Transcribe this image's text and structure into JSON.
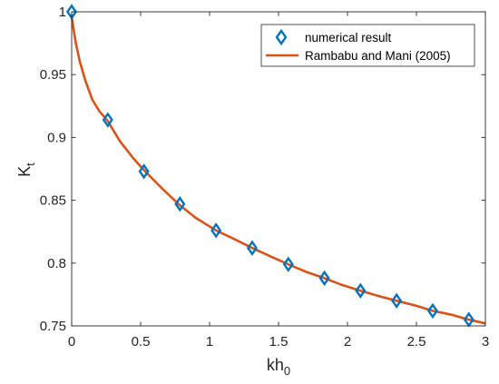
{
  "chart_data": {
    "type": "line",
    "xlabel": "kh",
    "xlabel_subscript": "0",
    "ylabel": "K",
    "ylabel_subscript": "t",
    "xlim": [
      0,
      3
    ],
    "ylim": [
      0.75,
      1
    ],
    "x_ticks": [
      0,
      0.5,
      1,
      1.5,
      2,
      2.5,
      3
    ],
    "x_tick_labels": [
      "0",
      "0.5",
      "1",
      "1.5",
      "2",
      "2.5",
      "3"
    ],
    "y_ticks": [
      0.75,
      0.8,
      0.85,
      0.9,
      0.95,
      1
    ],
    "y_tick_labels": [
      "0.75",
      "0.8",
      "0.85",
      "0.9",
      "0.95",
      "1"
    ],
    "grid": false,
    "legend_position": "top-right",
    "series": [
      {
        "name": "numerical result",
        "kind": "markers",
        "marker": "diamond",
        "color": "#0072BD",
        "x": [
          0,
          0.262,
          0.524,
          0.785,
          1.047,
          1.309,
          1.571,
          1.833,
          2.094,
          2.356,
          2.618,
          2.88
        ],
        "y": [
          1.0,
          0.914,
          0.873,
          0.847,
          0.826,
          0.812,
          0.799,
          0.788,
          0.778,
          0.77,
          0.762,
          0.755
        ]
      },
      {
        "name": "Rambabu and Mani (2005)",
        "kind": "line",
        "color": "#D95319",
        "x": [
          0,
          0.03,
          0.06,
          0.1,
          0.15,
          0.2,
          0.262,
          0.35,
          0.45,
          0.524,
          0.65,
          0.785,
          0.9,
          1.047,
          1.2,
          1.309,
          1.45,
          1.571,
          1.7,
          1.833,
          1.95,
          2.094,
          2.25,
          2.356,
          2.5,
          2.618,
          2.75,
          2.88,
          3.0
        ],
        "y": [
          0.996,
          0.975,
          0.96,
          0.945,
          0.93,
          0.921,
          0.913,
          0.897,
          0.883,
          0.874,
          0.86,
          0.846,
          0.836,
          0.826,
          0.818,
          0.812,
          0.805,
          0.799,
          0.793,
          0.788,
          0.783,
          0.778,
          0.773,
          0.77,
          0.766,
          0.762,
          0.759,
          0.755,
          0.752
        ]
      }
    ]
  }
}
